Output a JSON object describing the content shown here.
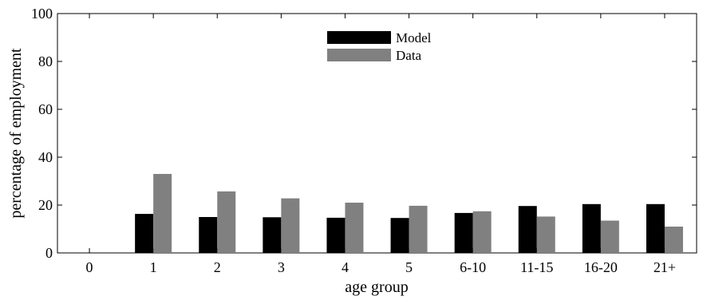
{
  "chart_data": {
    "type": "bar",
    "title": "",
    "xlabel": "age group",
    "ylabel": "percentage of employment",
    "categories": [
      "0",
      "1",
      "2",
      "3",
      "4",
      "5",
      "6-10",
      "11-15",
      "16-20",
      "21+"
    ],
    "series": [
      {
        "name": "Model",
        "color": "#000000",
        "values": [
          0,
          16.3,
          15.0,
          14.9,
          14.7,
          14.6,
          16.7,
          19.6,
          20.4,
          20.4
        ]
      },
      {
        "name": "Data",
        "color": "#808080",
        "values": [
          0,
          33.0,
          25.7,
          22.8,
          21.0,
          19.7,
          17.4,
          15.2,
          13.5,
          11.0
        ]
      }
    ],
    "ylim": [
      0,
      100
    ],
    "yticks": [
      0,
      20,
      40,
      60,
      80,
      100
    ],
    "legend_position": "top-center",
    "grid": false
  }
}
